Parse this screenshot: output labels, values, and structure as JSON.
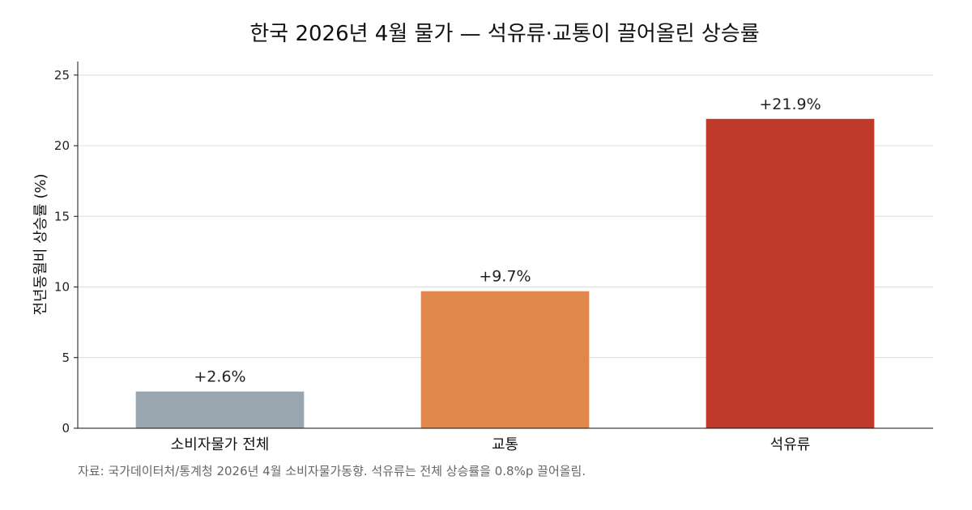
{
  "chart_data": {
    "type": "bar",
    "title": "한국 2026년 4월 물가 — 석유류·교통이 끌어올린 상승률",
    "xlabel": "",
    "ylabel": "전년동월비 상승률 (%)",
    "categories": [
      "소비자물가 전체",
      "교통",
      "석유류"
    ],
    "values": [
      2.6,
      9.7,
      21.9
    ],
    "data_labels": [
      "+2.6%",
      "+9.7%",
      "+21.9%"
    ],
    "colors": [
      "#9aa6af",
      "#e0884b",
      "#c0392b"
    ],
    "ylim": [
      0,
      26
    ],
    "yticks": [
      0,
      5,
      10,
      15,
      20,
      25
    ],
    "grid": true,
    "legend": "none",
    "source": "자료: 국가데이터처/통계청 2026년 4월 소비자물가동향. 석유류는 전체 상승률을 0.8%p 끌어올림."
  }
}
